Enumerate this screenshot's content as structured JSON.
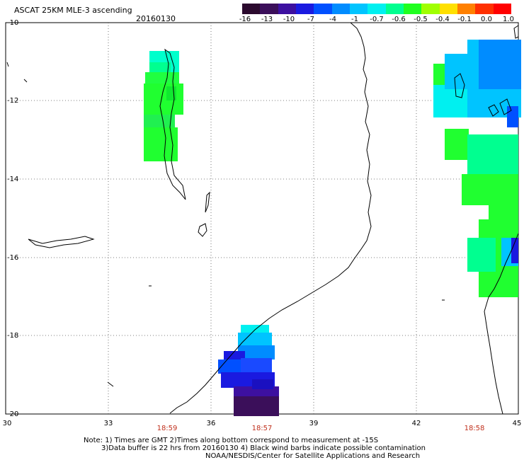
{
  "header": {
    "title": "ASCAT 25KM MLE-3 ascending",
    "date": "20160130"
  },
  "colorbar": {
    "labels": [
      "-16",
      "-13",
      "-10",
      "-7",
      "-4",
      "-1",
      "-0.7",
      "-0.6",
      "-0.5",
      "-0.4",
      "-0.1",
      "0.0",
      "1.0"
    ],
    "colors": [
      "#2b0a2e",
      "#3b0f5a",
      "#3d10a0",
      "#1a1ae0",
      "#0050ff",
      "#008cff",
      "#00c4ff",
      "#00f0f0",
      "#00ff90",
      "#20ff20",
      "#a0ff00",
      "#ffe000",
      "#ff8000",
      "#ff3000",
      "#ff0000"
    ]
  },
  "axes": {
    "y_ticks": [
      "-10",
      "-12",
      "-14",
      "-16",
      "-18",
      "-20"
    ],
    "x_ticks": [
      "30",
      "33",
      "36",
      "39",
      "42",
      "45"
    ]
  },
  "pass_times": [
    "18:59",
    "18:57",
    "18:58"
  ],
  "notes": {
    "line1": "Note: 1) Times are GMT 2)Times along bottom correspond to measurement at -15S",
    "line2": "3)Data buffer is 22 hrs from 20160130 4) Black wind barbs indicate possible contamination",
    "line3": "NOAA/NESDIS/Center for Satellite Applications and Research"
  },
  "map": {
    "lon_range": [
      30,
      45
    ],
    "lat_range": [
      -20,
      -10
    ],
    "grid": "dotted"
  }
}
